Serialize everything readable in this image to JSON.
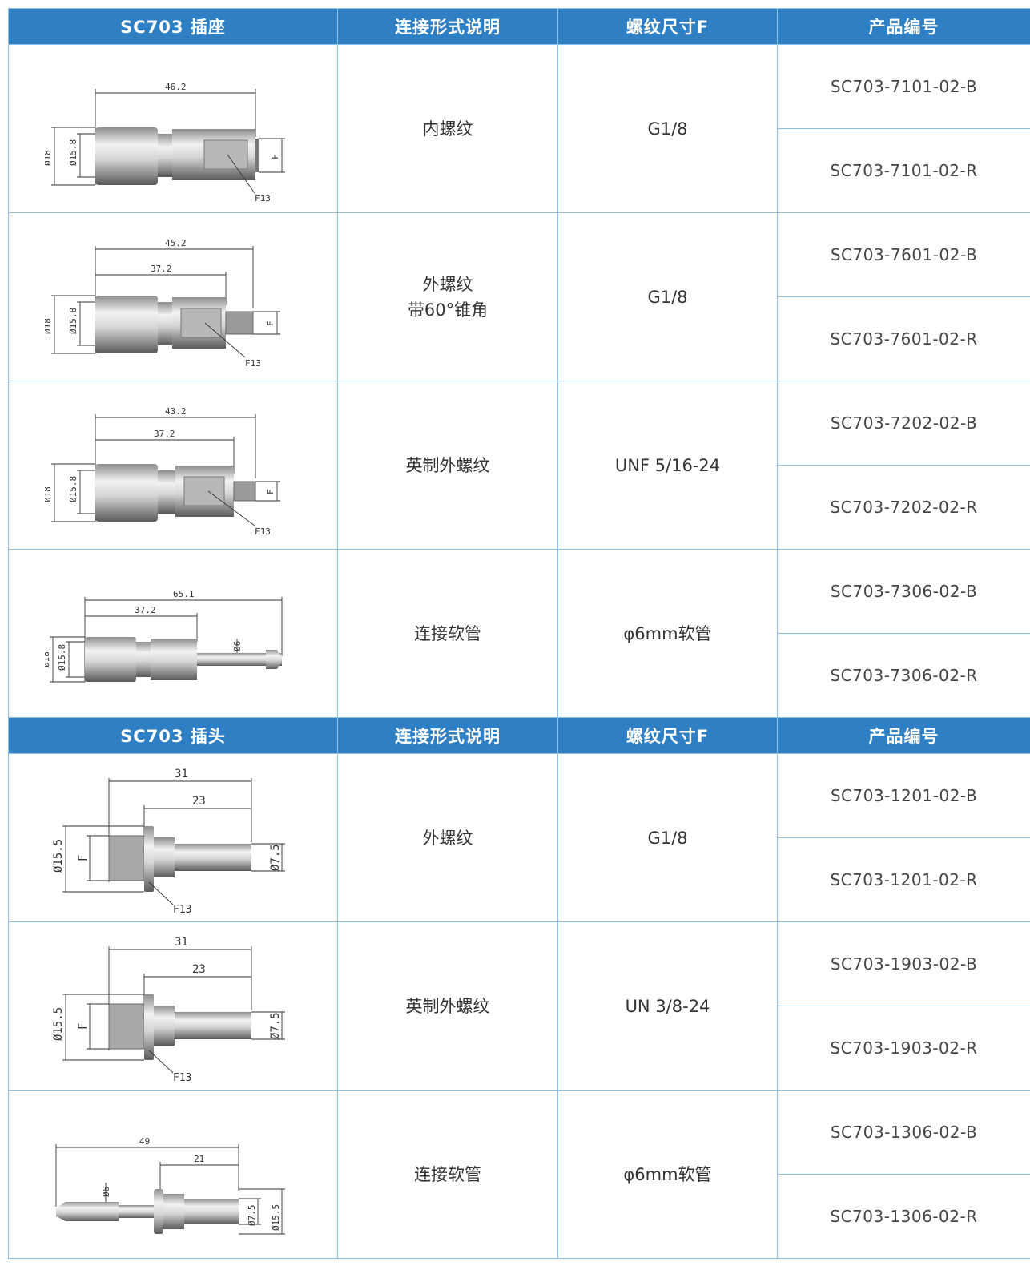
{
  "sections": [
    {
      "headers": [
        "SC703 插座",
        "连接形式说明",
        "螺纹尺寸F",
        "产品编号"
      ],
      "rows": [
        {
          "drawing": "socket-internal-thread-drawing",
          "dims": [
            "46.2",
            "Ø18",
            "Ø15.8",
            "F",
            "F13"
          ],
          "description": "内螺纹",
          "thread": "G1/8",
          "parts": [
            "SC703-7101-02-B",
            "SC703-7101-02-R"
          ]
        },
        {
          "drawing": "socket-external-thread-60deg-drawing",
          "dims": [
            "45.2",
            "37.2",
            "Ø18",
            "Ø15.8",
            "F",
            "F13"
          ],
          "description": "外螺纹\n带60°锥角",
          "thread": "G1/8",
          "parts": [
            "SC703-7601-02-B",
            "SC703-7601-02-R"
          ]
        },
        {
          "drawing": "socket-imperial-thread-drawing",
          "dims": [
            "43.2",
            "37.2",
            "Ø18",
            "Ø15.8",
            "F",
            "F13"
          ],
          "description": "英制外螺纹",
          "thread": "UNF 5/16-24",
          "parts": [
            "SC703-7202-02-B",
            "SC703-7202-02-R"
          ]
        },
        {
          "drawing": "socket-hose-barb-drawing",
          "dims": [
            "65.1",
            "37.2",
            "Ø18",
            "Ø15.8",
            "Ø6"
          ],
          "description": "连接软管",
          "thread": "φ6mm软管",
          "parts": [
            "SC703-7306-02-B",
            "SC703-7306-02-R"
          ]
        }
      ]
    },
    {
      "headers": [
        "SC703 插头",
        "连接形式说明",
        "螺纹尺寸F",
        "产品编号"
      ],
      "rows": [
        {
          "drawing": "plug-external-thread-drawing",
          "dims": [
            "31",
            "23",
            "Ø15.5",
            "F",
            "Ø7.5",
            "F13"
          ],
          "description": "外螺纹",
          "thread": "G1/8",
          "parts": [
            "SC703-1201-02-B",
            "SC703-1201-02-R"
          ]
        },
        {
          "drawing": "plug-imperial-thread-drawing",
          "dims": [
            "31",
            "23",
            "Ø15.5",
            "F",
            "Ø7.5",
            "F13"
          ],
          "description": "英制外螺纹",
          "thread": "UN 3/8-24",
          "parts": [
            "SC703-1903-02-B",
            "SC703-1903-02-R"
          ]
        },
        {
          "drawing": "plug-hose-barb-drawing",
          "dims": [
            "49",
            "21",
            "Ø6",
            "Ø7.5",
            "Ø15.5"
          ],
          "description": "连接软管",
          "thread": "φ6mm软管",
          "parts": [
            "SC703-1306-02-B",
            "SC703-1306-02-R"
          ]
        }
      ]
    }
  ],
  "colors": {
    "header_bg": "#2e7fc4",
    "header_text": "#ffffff",
    "border": "#8fbfe6",
    "text": "#333333"
  }
}
